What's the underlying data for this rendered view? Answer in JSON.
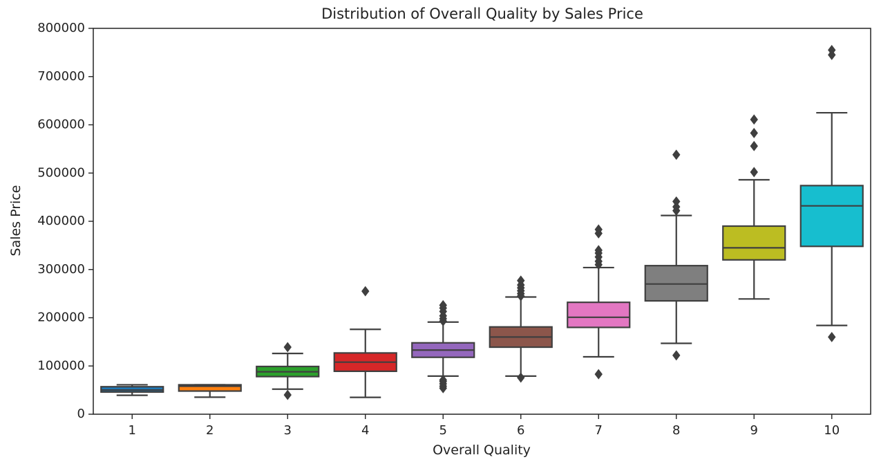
{
  "chart_data": {
    "type": "box",
    "title": "Distribution of Overall Quality by Sales Price",
    "xlabel": "Overall Quality",
    "ylabel": "Sales Price",
    "ylim": [
      0,
      800000
    ],
    "yticks": [
      0,
      100000,
      200000,
      300000,
      400000,
      500000,
      600000,
      700000,
      800000
    ],
    "grid": false,
    "box_edge_color": "#3f3f3f",
    "categories": [
      "1",
      "2",
      "3",
      "4",
      "5",
      "6",
      "7",
      "8",
      "9",
      "10"
    ],
    "boxes": [
      {
        "category": "1",
        "color": "#1f77b4",
        "whisker_low": 39300,
        "q1": 46000,
        "median": 50000,
        "q3": 57000,
        "whisker_high": 61000,
        "outliers": []
      },
      {
        "category": "2",
        "color": "#ff7f0e",
        "whisker_low": 35300,
        "q1": 48000,
        "median": 58000,
        "q3": 61000,
        "whisker_high": 61000,
        "outliers": []
      },
      {
        "category": "3",
        "color": "#2ca02c",
        "whisker_low": 52000,
        "q1": 78000,
        "median": 88000,
        "q3": 99000,
        "whisker_high": 126000,
        "outliers": [
          40000,
          139000
        ]
      },
      {
        "category": "4",
        "color": "#d62728",
        "whisker_low": 35000,
        "q1": 89000,
        "median": 108000,
        "q3": 127000,
        "whisker_high": 176000,
        "outliers": [
          255000
        ]
      },
      {
        "category": "5",
        "color": "#9467bd",
        "whisker_low": 79000,
        "q1": 118000,
        "median": 133000,
        "q3": 148000,
        "whisker_high": 191000,
        "outliers": [
          54000,
          58000,
          63000,
          68000,
          71000,
          193000,
          198000,
          204000,
          213000,
          220000,
          226000
        ]
      },
      {
        "category": "6",
        "color": "#8c564b",
        "whisker_low": 79000,
        "q1": 139000,
        "median": 160000,
        "q3": 181000,
        "whisker_high": 243000,
        "outliers": [
          76000,
          245000,
          250000,
          256000,
          262000,
          268000,
          277000
        ]
      },
      {
        "category": "7",
        "color": "#e377c2",
        "whisker_low": 119000,
        "q1": 180000,
        "median": 201000,
        "q3": 232000,
        "whisker_high": 304000,
        "outliers": [
          83000,
          310000,
          317000,
          326000,
          334000,
          340000,
          375000,
          383000
        ]
      },
      {
        "category": "8",
        "color": "#7f7f7f",
        "whisker_low": 147000,
        "q1": 235000,
        "median": 270000,
        "q3": 308000,
        "whisker_high": 412000,
        "outliers": [
          122000,
          422000,
          430000,
          441000,
          538000
        ]
      },
      {
        "category": "9",
        "color": "#bcbd22",
        "whisker_low": 239000,
        "q1": 320000,
        "median": 345000,
        "q3": 390000,
        "whisker_high": 486000,
        "outliers": [
          502000,
          556000,
          583000,
          611000
        ]
      },
      {
        "category": "10",
        "color": "#17becf",
        "whisker_low": 184000,
        "q1": 348000,
        "median": 432000,
        "q3": 474000,
        "whisker_high": 625000,
        "outliers": [
          160000,
          745000,
          755000
        ]
      }
    ]
  }
}
